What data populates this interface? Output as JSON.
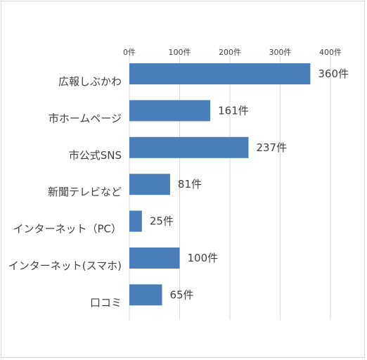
{
  "chart_data": {
    "type": "bar",
    "orientation": "horizontal",
    "categories": [
      "広報しぶかわ",
      "市ホームページ",
      "市公式SNS",
      "新聞テレビなど",
      "インターネット（PC）",
      "インターネット(スマホ)",
      "口コミ"
    ],
    "values": [
      360,
      161,
      237,
      81,
      25,
      100,
      65
    ],
    "data_labels": [
      "360件",
      "161件",
      "237件",
      "81件",
      "25件",
      "100件",
      "65件"
    ],
    "xlim": [
      0,
      400
    ],
    "ticks": [
      0,
      100,
      200,
      300,
      400
    ],
    "tick_labels": [
      "0件",
      "100件",
      "200件",
      "300件",
      "400件"
    ],
    "axis_position": "top",
    "grid": true,
    "bar_color": "#4a7ebb",
    "grid_color": "#d9d9d9",
    "title": "",
    "xlabel": "",
    "ylabel": ""
  }
}
